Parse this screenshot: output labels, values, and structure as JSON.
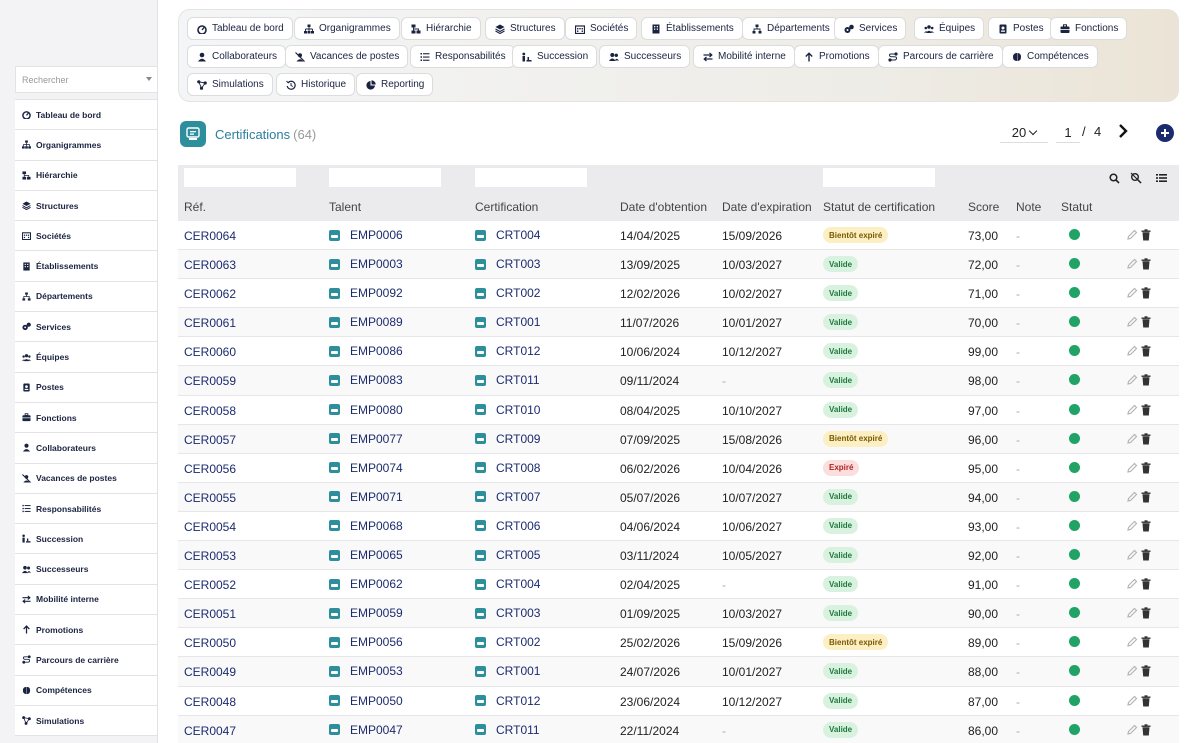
{
  "sidebar": {
    "search_placeholder": "Rechercher",
    "items": [
      {
        "label": "Tableau de bord",
        "icon": "dashboard-icon"
      },
      {
        "label": "Organigrammes",
        "icon": "org-chart-icon"
      },
      {
        "label": "Hiérarchie",
        "icon": "hierarchy-icon"
      },
      {
        "label": "Structures",
        "icon": "layers-icon"
      },
      {
        "label": "Sociétés",
        "icon": "company-icon"
      },
      {
        "label": "Établissements",
        "icon": "building-icon"
      },
      {
        "label": "Départements",
        "icon": "department-icon"
      },
      {
        "label": "Services",
        "icon": "services-icon"
      },
      {
        "label": "Équipes",
        "icon": "team-icon"
      },
      {
        "label": "Postes",
        "icon": "position-icon"
      },
      {
        "label": "Fonctions",
        "icon": "briefcase-icon"
      },
      {
        "label": "Collaborateurs",
        "icon": "user-icon"
      },
      {
        "label": "Vacances de postes",
        "icon": "user-slash-icon"
      },
      {
        "label": "Responsabilités",
        "icon": "list-icon"
      },
      {
        "label": "Succession",
        "icon": "succession-icon"
      },
      {
        "label": "Successeurs",
        "icon": "users-icon"
      },
      {
        "label": "Mobilité interne",
        "icon": "swap-icon"
      },
      {
        "label": "Promotions",
        "icon": "arrow-up-icon"
      },
      {
        "label": "Parcours de carrière",
        "icon": "route-icon"
      },
      {
        "label": "Compétences",
        "icon": "brain-icon"
      },
      {
        "label": "Simulations",
        "icon": "network-icon"
      }
    ]
  },
  "topnav": {
    "items": [
      {
        "label": "Tableau de bord",
        "icon": "dashboard-icon"
      },
      {
        "label": "Organigrammes",
        "icon": "org-chart-icon"
      },
      {
        "label": "Hiérarchie",
        "icon": "hierarchy-icon"
      },
      {
        "label": "Structures",
        "icon": "layers-icon"
      },
      {
        "label": "Sociétés",
        "icon": "company-icon"
      },
      {
        "label": "Établissements",
        "icon": "building-icon"
      },
      {
        "label": "Départements",
        "icon": "department-icon"
      },
      {
        "label": "Services",
        "icon": "services-icon"
      },
      {
        "label": "Équipes",
        "icon": "team-icon"
      },
      {
        "label": "Postes",
        "icon": "position-icon"
      },
      {
        "label": "Fonctions",
        "icon": "briefcase-icon"
      },
      {
        "label": "Collaborateurs",
        "icon": "user-icon"
      },
      {
        "label": "Vacances de postes",
        "icon": "user-slash-icon"
      },
      {
        "label": "Responsabilités",
        "icon": "list-icon"
      },
      {
        "label": "Succession",
        "icon": "succession-icon"
      },
      {
        "label": "Successeurs",
        "icon": "users-icon"
      },
      {
        "label": "Mobilité interne",
        "icon": "swap-icon"
      },
      {
        "label": "Promotions",
        "icon": "arrow-up-icon"
      },
      {
        "label": "Parcours de carrière",
        "icon": "route-icon"
      },
      {
        "label": "Compétences",
        "icon": "brain-icon"
      },
      {
        "label": "Simulations",
        "icon": "network-icon"
      },
      {
        "label": "Historique",
        "icon": "history-icon"
      },
      {
        "label": "Reporting",
        "icon": "pie-chart-icon"
      }
    ]
  },
  "header": {
    "title": "Certifications",
    "count": "(64)",
    "page_size": "20",
    "current_page": "1",
    "separator": "/",
    "total_pages": "4"
  },
  "colors": {
    "accent": "#2a7f9e",
    "link": "#1c2b6e",
    "status_active": "#21a366"
  },
  "table": {
    "columns": [
      "Réf.",
      "Talent",
      "Certification",
      "Date d'obtention",
      "Date d'expiration",
      "Statut de certification",
      "Score",
      "Note",
      "Statut"
    ],
    "rows": [
      {
        "ref": "CER0064",
        "talent": "EMP0006",
        "cert": "CRT004",
        "obtained": "14/04/2025",
        "expires": "15/09/2026",
        "status": "Bientôt expiré",
        "status_kind": "bientot",
        "score": "73,00",
        "note": "-"
      },
      {
        "ref": "CER0063",
        "talent": "EMP0003",
        "cert": "CRT003",
        "obtained": "13/09/2025",
        "expires": "10/03/2027",
        "status": "Valide",
        "status_kind": "valide",
        "score": "72,00",
        "note": "-"
      },
      {
        "ref": "CER0062",
        "talent": "EMP0092",
        "cert": "CRT002",
        "obtained": "12/02/2026",
        "expires": "10/02/2027",
        "status": "Valide",
        "status_kind": "valide",
        "score": "71,00",
        "note": "-"
      },
      {
        "ref": "CER0061",
        "talent": "EMP0089",
        "cert": "CRT001",
        "obtained": "11/07/2026",
        "expires": "10/01/2027",
        "status": "Valide",
        "status_kind": "valide",
        "score": "70,00",
        "note": "-"
      },
      {
        "ref": "CER0060",
        "talent": "EMP0086",
        "cert": "CRT012",
        "obtained": "10/06/2024",
        "expires": "10/12/2027",
        "status": "Valide",
        "status_kind": "valide",
        "score": "99,00",
        "note": "-"
      },
      {
        "ref": "CER0059",
        "talent": "EMP0083",
        "cert": "CRT011",
        "obtained": "09/11/2024",
        "expires": "-",
        "status": "Valide",
        "status_kind": "valide",
        "score": "98,00",
        "note": "-"
      },
      {
        "ref": "CER0058",
        "talent": "EMP0080",
        "cert": "CRT010",
        "obtained": "08/04/2025",
        "expires": "10/10/2027",
        "status": "Valide",
        "status_kind": "valide",
        "score": "97,00",
        "note": "-"
      },
      {
        "ref": "CER0057",
        "talent": "EMP0077",
        "cert": "CRT009",
        "obtained": "07/09/2025",
        "expires": "15/08/2026",
        "status": "Bientôt expiré",
        "status_kind": "bientot",
        "score": "96,00",
        "note": "-"
      },
      {
        "ref": "CER0056",
        "talent": "EMP0074",
        "cert": "CRT008",
        "obtained": "06/02/2026",
        "expires": "10/04/2026",
        "status": "Expiré",
        "status_kind": "expire",
        "score": "95,00",
        "note": "-"
      },
      {
        "ref": "CER0055",
        "talent": "EMP0071",
        "cert": "CRT007",
        "obtained": "05/07/2026",
        "expires": "10/07/2027",
        "status": "Valide",
        "status_kind": "valide",
        "score": "94,00",
        "note": "-"
      },
      {
        "ref": "CER0054",
        "talent": "EMP0068",
        "cert": "CRT006",
        "obtained": "04/06/2024",
        "expires": "10/06/2027",
        "status": "Valide",
        "status_kind": "valide",
        "score": "93,00",
        "note": "-"
      },
      {
        "ref": "CER0053",
        "talent": "EMP0065",
        "cert": "CRT005",
        "obtained": "03/11/2024",
        "expires": "10/05/2027",
        "status": "Valide",
        "status_kind": "valide",
        "score": "92,00",
        "note": "-"
      },
      {
        "ref": "CER0052",
        "talent": "EMP0062",
        "cert": "CRT004",
        "obtained": "02/04/2025",
        "expires": "-",
        "status": "Valide",
        "status_kind": "valide",
        "score": "91,00",
        "note": "-"
      },
      {
        "ref": "CER0051",
        "talent": "EMP0059",
        "cert": "CRT003",
        "obtained": "01/09/2025",
        "expires": "10/03/2027",
        "status": "Valide",
        "status_kind": "valide",
        "score": "90,00",
        "note": "-"
      },
      {
        "ref": "CER0050",
        "talent": "EMP0056",
        "cert": "CRT002",
        "obtained": "25/02/2026",
        "expires": "15/09/2026",
        "status": "Bientôt expiré",
        "status_kind": "bientot",
        "score": "89,00",
        "note": "-"
      },
      {
        "ref": "CER0049",
        "talent": "EMP0053",
        "cert": "CRT001",
        "obtained": "24/07/2026",
        "expires": "10/01/2027",
        "status": "Valide",
        "status_kind": "valide",
        "score": "88,00",
        "note": "-"
      },
      {
        "ref": "CER0048",
        "talent": "EMP0050",
        "cert": "CRT012",
        "obtained": "23/06/2024",
        "expires": "10/12/2027",
        "status": "Valide",
        "status_kind": "valide",
        "score": "87,00",
        "note": "-"
      },
      {
        "ref": "CER0047",
        "talent": "EMP0047",
        "cert": "CRT011",
        "obtained": "22/11/2024",
        "expires": "-",
        "status": "Valide",
        "status_kind": "valide",
        "score": "86,00",
        "note": "-"
      }
    ]
  }
}
